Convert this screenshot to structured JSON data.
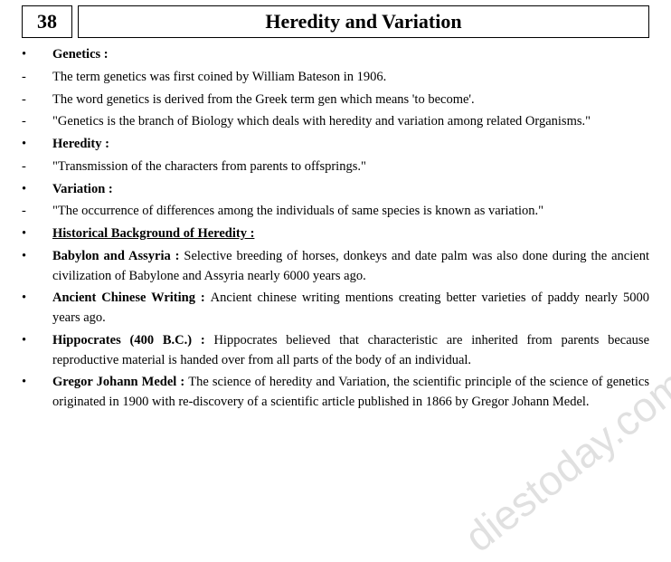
{
  "chapter_number": "38",
  "chapter_title": "Heredity and Variation",
  "watermark": "diestoday.com",
  "lines": [
    {
      "marker": "•",
      "bold": true,
      "underline": false,
      "runin": "",
      "text": "Genetics  :"
    },
    {
      "marker": "-",
      "bold": false,
      "underline": false,
      "runin": "",
      "text": "The term genetics was first coined by William Bateson in 1906."
    },
    {
      "marker": "-",
      "bold": false,
      "underline": false,
      "runin": "",
      "text": "The word genetics is derived from the Greek term gen which means 'to become'."
    },
    {
      "marker": "-",
      "bold": false,
      "underline": false,
      "runin": "",
      "text": "\"Genetics is the branch of Biology which deals with heredity and variation among related Organisms.\""
    },
    {
      "marker": "•",
      "bold": true,
      "underline": false,
      "runin": "",
      "text": "Heredity  :"
    },
    {
      "marker": "-",
      "bold": false,
      "underline": false,
      "runin": "",
      "text": "\"Transmission of the characters from parents to offsprings.\""
    },
    {
      "marker": "•",
      "bold": true,
      "underline": false,
      "runin": "",
      "text": "Variation :"
    },
    {
      "marker": "-",
      "bold": false,
      "underline": false,
      "runin": "",
      "text": "\"The occurrence of differences among the individuals of same species is known as variation.\""
    },
    {
      "marker": "•",
      "bold": true,
      "underline": true,
      "runin": "",
      "text": "Historical  Background  of   Heredity  :"
    },
    {
      "marker": "•",
      "bold": false,
      "underline": false,
      "runin": "Babylon and Assyria : ",
      "text": "Selective breeding of horses, donkeys and date palm was also done during the ancient civilization of  Babylone and Assyria nearly 6000 years ago."
    },
    {
      "marker": "•",
      "bold": false,
      "underline": false,
      "runin": "Ancient Chinese Writing : ",
      "text": "Ancient chinese writing mentions creating better varieties of  paddy nearly 5000 years ago."
    },
    {
      "marker": "•",
      "bold": false,
      "underline": false,
      "runin": "Hippocrates (400 B.C.) : ",
      "text": "Hippocrates believed that characteristic are inherited from parents because reproductive material is handed over from all parts of the body of an individual."
    },
    {
      "marker": "•",
      "bold": false,
      "underline": false,
      "runin": "Gregor Johann Medel : ",
      "text": "The science of heredity and Variation, the scientific principle of the science of genetics originated in 1900 with re-discovery of a scientific article published in 1866 by Gregor Johann Medel."
    }
  ]
}
